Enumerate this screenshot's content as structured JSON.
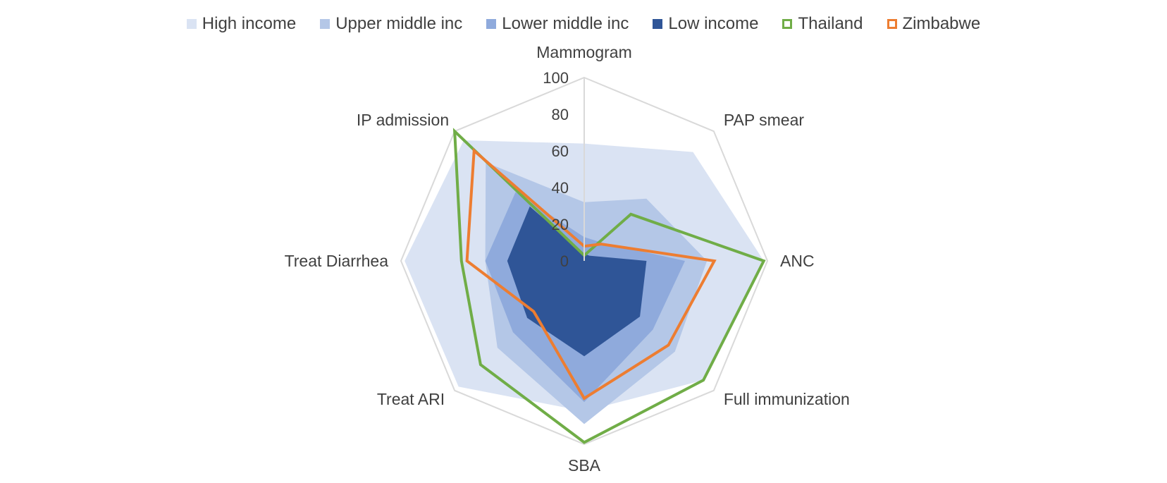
{
  "chart_data": {
    "type": "radar",
    "title": "",
    "axes": [
      "Mammogram",
      "PAP smear",
      "ANC",
      "Full immunization",
      "SBA",
      "Treat ARI",
      "Treat Diarrhea",
      "IP admission"
    ],
    "rlim": [
      0,
      100
    ],
    "tick_labels": [
      "0",
      "20",
      "40",
      "60",
      "80",
      "100"
    ],
    "grid": true,
    "legend_position": "top",
    "series": [
      {
        "name": "High income",
        "style": "area",
        "color": "#dae3f3",
        "values": [
          64,
          84,
          98,
          92,
          82,
          97,
          98,
          93
        ]
      },
      {
        "name": "Upper middle inc",
        "style": "area",
        "color": "#b4c7e7",
        "values": [
          32,
          48,
          67,
          70,
          89,
          67,
          54,
          76
        ]
      },
      {
        "name": "Lower middle inc",
        "style": "area",
        "color": "#8faadc",
        "values": [
          13,
          14,
          55,
          53,
          77,
          55,
          54,
          53
        ]
      },
      {
        "name": "Low income",
        "style": "area",
        "color": "#2f5597",
        "values": [
          4,
          4,
          34,
          43,
          52,
          44,
          42,
          42
        ]
      },
      {
        "name": "Thailand",
        "style": "line",
        "color": "#70ad47",
        "values": [
          3,
          36,
          98,
          92,
          99,
          80,
          67,
          100
        ]
      },
      {
        "name": "Zimbabwe",
        "style": "line",
        "color": "#ed7d31",
        "values": [
          8,
          13,
          71,
          65,
          75,
          39,
          64,
          85
        ]
      }
    ]
  }
}
